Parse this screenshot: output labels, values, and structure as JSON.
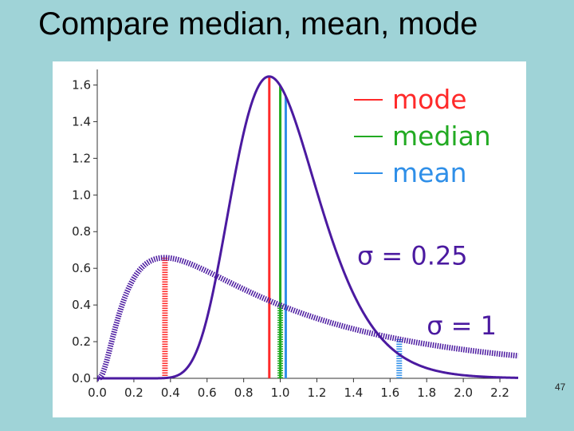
{
  "slide": {
    "title": "Compare median, mean, mode",
    "page_number": "47"
  },
  "chart_data": {
    "type": "line",
    "title": "",
    "xlabel": "",
    "ylabel": "",
    "xlim": [
      0.0,
      2.3
    ],
    "ylim": [
      0.0,
      1.65
    ],
    "x_ticks": [
      "0.0",
      "0.2",
      "0.4",
      "0.6",
      "0.8",
      "1.0",
      "1.2",
      "1.4",
      "1.6",
      "1.8",
      "2.0",
      "2.2"
    ],
    "y_ticks": [
      "0.0",
      "0.2",
      "0.4",
      "0.6",
      "0.8",
      "1.0",
      "1.2",
      "1.4",
      "1.6"
    ],
    "grid": false,
    "legend_position": "top-right",
    "legend": [
      {
        "label": "mode",
        "color": "#ff2a2a"
      },
      {
        "label": "median",
        "color": "#22aa22"
      },
      {
        "label": "mean",
        "color": "#2f8fe8"
      }
    ],
    "curve_color": "#4b1aa0",
    "series": [
      {
        "name": "σ = 0.25",
        "style": "solid",
        "distribution": "lognormal",
        "mu": 0.0,
        "sigma": 0.25,
        "markers": {
          "mode": 0.94,
          "median": 1.0,
          "mean": 1.03
        }
      },
      {
        "name": "σ = 1",
        "style": "dotted",
        "distribution": "lognormal",
        "mu": 0.0,
        "sigma": 1.0,
        "markers": {
          "mode": 0.37,
          "median": 1.0,
          "mean": 1.65
        }
      }
    ],
    "annotations": [
      {
        "text": "σ = 0.25",
        "x": 1.42,
        "y": 0.62
      },
      {
        "text": "σ = 1",
        "x": 1.8,
        "y": 0.24
      }
    ]
  }
}
